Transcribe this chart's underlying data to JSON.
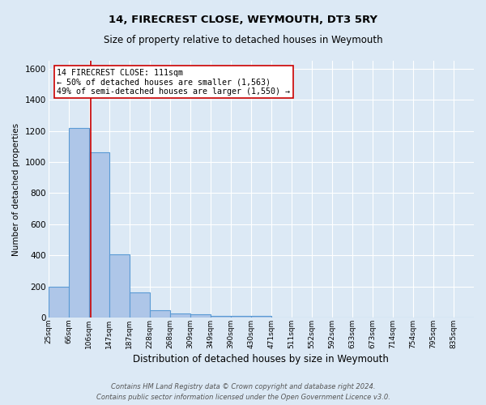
{
  "title": "14, FIRECREST CLOSE, WEYMOUTH, DT3 5RY",
  "subtitle": "Size of property relative to detached houses in Weymouth",
  "xlabel": "Distribution of detached houses by size in Weymouth",
  "ylabel": "Number of detached properties",
  "footnote1": "Contains HM Land Registry data © Crown copyright and database right 2024.",
  "footnote2": "Contains public sector information licensed under the Open Government Licence v3.0.",
  "categories": [
    "25sqm",
    "66sqm",
    "106sqm",
    "147sqm",
    "187sqm",
    "228sqm",
    "268sqm",
    "309sqm",
    "349sqm",
    "390sqm",
    "430sqm",
    "471sqm",
    "511sqm",
    "552sqm",
    "592sqm",
    "633sqm",
    "673sqm",
    "714sqm",
    "754sqm",
    "795sqm",
    "835sqm"
  ],
  "values": [
    200,
    1220,
    1060,
    405,
    165,
    50,
    25,
    20,
    12,
    10,
    10,
    0,
    0,
    0,
    0,
    0,
    0,
    0,
    0,
    0,
    0
  ],
  "bar_color": "#aec6e8",
  "bar_edgecolor": "#5b9bd5",
  "bar_linewidth": 0.8,
  "vline_x_idx": 2,
  "vline_color": "#cc0000",
  "vline_linewidth": 1.2,
  "ylim": [
    0,
    1650
  ],
  "yticks": [
    0,
    200,
    400,
    600,
    800,
    1000,
    1200,
    1400,
    1600
  ],
  "annotation_line1": "14 FIRECREST CLOSE: 111sqm",
  "annotation_line2": "← 50% of detached houses are smaller (1,563)",
  "annotation_line3": "49% of semi-detached houses are larger (1,550) →",
  "annotation_box_facecolor": "#ffffff",
  "annotation_box_edgecolor": "#cc0000",
  "bg_color": "#dce9f5",
  "plot_bg_color": "#dce9f5",
  "grid_color": "#ffffff",
  "bin_width": 41
}
